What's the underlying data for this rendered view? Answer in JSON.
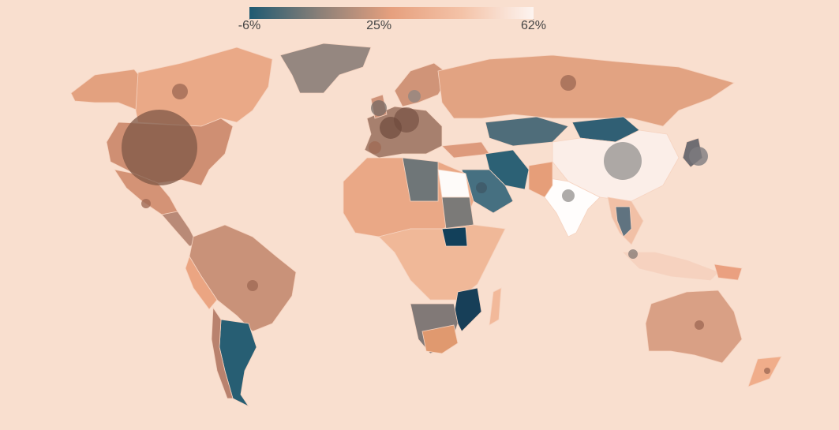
{
  "legend": {
    "min": -6,
    "max": 62,
    "colors": [
      "#1f5a72",
      "#8c8078",
      "#e6a07e",
      "#f4c3a8",
      "#fdf4f0"
    ],
    "ticks": [
      {
        "value": -6,
        "label": "-6%"
      },
      {
        "value": 25,
        "label": "25%"
      },
      {
        "value": 62,
        "label": "62%"
      }
    ]
  }
}
